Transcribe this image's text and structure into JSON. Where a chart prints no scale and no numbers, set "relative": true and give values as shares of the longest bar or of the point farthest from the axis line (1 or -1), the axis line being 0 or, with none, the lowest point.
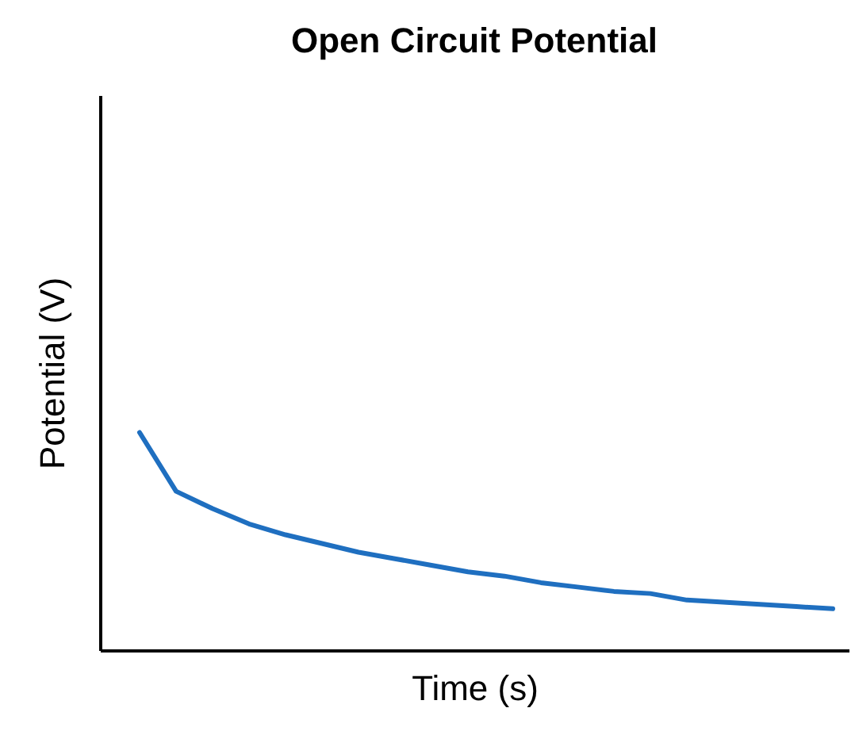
{
  "chart_data": {
    "type": "line",
    "title": "Open Circuit Potential",
    "xlabel": "Time (s)",
    "ylabel": "Potential (V)",
    "relative": true,
    "grid": false,
    "categories": [
      null,
      null,
      null,
      null,
      null,
      null,
      null,
      null,
      null,
      null,
      null,
      null,
      null,
      null,
      null,
      null,
      null,
      null,
      null,
      null
    ],
    "series": [
      {
        "color": "#1f6fc0",
        "values": [
          1.0,
          0.73,
          0.65,
          0.58,
          0.53,
          0.49,
          0.45,
          0.42,
          0.39,
          0.36,
          0.34,
          0.31,
          0.29,
          0.27,
          0.26,
          0.23,
          0.22,
          0.21,
          0.2,
          0.19
        ]
      }
    ]
  }
}
